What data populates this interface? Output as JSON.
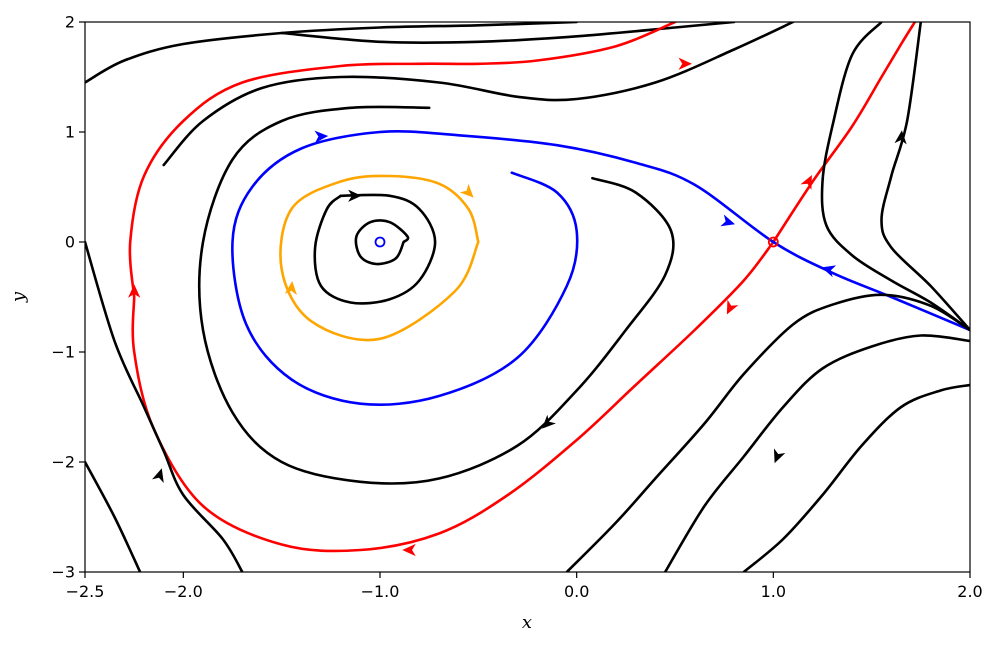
{
  "chart_data": {
    "type": "phase-portrait",
    "title": "",
    "xlabel": "x",
    "ylabel": "y",
    "xlim": [
      -2.5,
      2.0
    ],
    "ylim": [
      -3,
      2
    ],
    "x_ticks": [
      -2.5,
      -2.0,
      -1.0,
      0.0,
      1.0,
      2.0
    ],
    "x_tick_labels": [
      "−2.5",
      "−2.0",
      "−1.0",
      "0.0",
      "1.0",
      "2.0"
    ],
    "y_ticks": [
      -3,
      -2,
      -1,
      0,
      1,
      2
    ],
    "y_tick_labels": [
      "−3",
      "−2",
      "−1",
      "0",
      "1",
      "2"
    ],
    "grid": false,
    "colors": {
      "black": "#000000",
      "red": "#ff0000",
      "blue": "#0000ff",
      "orange": "#ffa500"
    },
    "fixed_points": [
      {
        "x": -1.0,
        "y": 0.0,
        "kind": "center",
        "color": "#0000ff"
      },
      {
        "x": 1.0,
        "y": 0.0,
        "kind": "saddle",
        "color": "#ff0000"
      }
    ],
    "trajectories": [
      {
        "color": "#000000",
        "points": [
          [
            -2.5,
            1.45
          ],
          [
            -2.3,
            1.65
          ],
          [
            -2.0,
            1.8
          ],
          [
            -1.5,
            1.9
          ],
          [
            -1.0,
            1.95
          ],
          [
            -0.5,
            1.97
          ],
          [
            0.0,
            2.0
          ]
        ]
      },
      {
        "color": "#000000",
        "points": [
          [
            -1.5,
            1.9
          ],
          [
            -1.0,
            1.82
          ],
          [
            -0.5,
            1.82
          ],
          [
            0.0,
            1.87
          ],
          [
            0.5,
            1.95
          ],
          [
            0.8,
            2.0
          ]
        ]
      },
      {
        "color": "#000000",
        "points": [
          [
            -2.1,
            0.7
          ],
          [
            -1.9,
            1.1
          ],
          [
            -1.6,
            1.4
          ],
          [
            -1.2,
            1.5
          ],
          [
            -0.7,
            1.45
          ],
          [
            -0.3,
            1.32
          ],
          [
            0.0,
            1.3
          ],
          [
            0.4,
            1.45
          ],
          [
            0.8,
            1.75
          ],
          [
            1.1,
            2.0
          ]
        ]
      },
      {
        "color": "#ff0000",
        "points": [
          [
            -2.25,
            -0.5
          ],
          [
            -2.27,
            0.0
          ],
          [
            -2.2,
            0.6
          ],
          [
            -2.0,
            1.1
          ],
          [
            -1.7,
            1.45
          ],
          [
            -1.2,
            1.6
          ],
          [
            -0.8,
            1.62
          ],
          [
            -0.5,
            1.62
          ],
          [
            -0.2,
            1.65
          ],
          [
            0.2,
            1.78
          ],
          [
            0.5,
            2.0
          ]
        ]
      },
      {
        "color": "#ff0000",
        "points": [
          [
            1.0,
            0.0
          ],
          [
            0.85,
            -0.35
          ],
          [
            0.6,
            -0.8
          ],
          [
            0.3,
            -1.3
          ],
          [
            0.0,
            -1.8
          ],
          [
            -0.35,
            -2.3
          ],
          [
            -0.7,
            -2.65
          ],
          [
            -1.1,
            -2.8
          ],
          [
            -1.5,
            -2.75
          ],
          [
            -1.9,
            -2.4
          ],
          [
            -2.15,
            -1.7
          ],
          [
            -2.25,
            -1.0
          ],
          [
            -2.25,
            -0.5
          ]
        ]
      },
      {
        "color": "#ff0000",
        "points": [
          [
            1.0,
            0.0
          ],
          [
            1.2,
            0.55
          ],
          [
            1.4,
            1.05
          ],
          [
            1.55,
            1.5
          ],
          [
            1.65,
            1.8
          ],
          [
            1.72,
            2.0
          ]
        ]
      },
      {
        "color": "#000000",
        "points": [
          [
            -2.5,
            -2.0
          ],
          [
            -2.35,
            -2.5
          ],
          [
            -2.22,
            -3.0
          ]
        ]
      },
      {
        "color": "#000000",
        "points": [
          [
            -2.5,
            0.0
          ],
          [
            -2.35,
            -0.9
          ],
          [
            -2.2,
            -1.5
          ],
          [
            -2.1,
            -1.9
          ],
          [
            -2.0,
            -2.3
          ],
          [
            -1.8,
            -2.7
          ],
          [
            -1.7,
            -3.0
          ]
        ]
      },
      {
        "color": "#000000",
        "points": [
          [
            0.08,
            0.58
          ],
          [
            0.3,
            0.45
          ],
          [
            0.48,
            0.1
          ],
          [
            0.45,
            -0.3
          ],
          [
            0.25,
            -0.8
          ],
          [
            0.0,
            -1.35
          ],
          [
            -0.3,
            -1.85
          ],
          [
            -0.7,
            -2.15
          ],
          [
            -1.1,
            -2.18
          ],
          [
            -1.5,
            -2.0
          ],
          [
            -1.75,
            -1.55
          ],
          [
            -1.9,
            -0.8
          ],
          [
            -1.9,
            0.0
          ],
          [
            -1.75,
            0.75
          ],
          [
            -1.5,
            1.1
          ],
          [
            -1.15,
            1.22
          ],
          [
            -0.75,
            1.22
          ]
        ]
      },
      {
        "color": "#0000ff",
        "points": [
          [
            -0.33,
            0.63
          ],
          [
            -0.1,
            0.45
          ],
          [
            0.0,
            0.1
          ],
          [
            -0.05,
            -0.4
          ],
          [
            -0.3,
            -1.05
          ],
          [
            -0.7,
            -1.4
          ],
          [
            -1.1,
            -1.47
          ],
          [
            -1.45,
            -1.25
          ],
          [
            -1.68,
            -0.75
          ],
          [
            -1.75,
            0.0
          ],
          [
            -1.65,
            0.5
          ],
          [
            -1.4,
            0.85
          ],
          [
            -1.0,
            1.0
          ],
          [
            -0.6,
            0.97
          ],
          [
            -0.1,
            0.88
          ],
          [
            0.3,
            0.72
          ],
          [
            0.6,
            0.52
          ],
          [
            1.0,
            0.0
          ],
          [
            1.3,
            -0.28
          ],
          [
            1.6,
            -0.5
          ],
          [
            2.0,
            -0.8
          ]
        ]
      },
      {
        "color": "#ffa500",
        "points": [
          [
            -0.5,
            0.0
          ],
          [
            -0.62,
            -0.45
          ],
          [
            -1.0,
            -0.88
          ],
          [
            -1.35,
            -0.72
          ],
          [
            -1.5,
            -0.25
          ],
          [
            -1.45,
            0.3
          ],
          [
            -1.2,
            0.55
          ],
          [
            -0.95,
            0.6
          ],
          [
            -0.7,
            0.53
          ],
          [
            -0.55,
            0.3
          ],
          [
            -0.5,
            0.0
          ]
        ]
      },
      {
        "color": "#000000",
        "points": [
          [
            -1.2,
            0.42
          ],
          [
            -0.95,
            0.42
          ],
          [
            -0.8,
            0.3
          ],
          [
            -0.72,
            0.0
          ],
          [
            -0.8,
            -0.35
          ],
          [
            -0.95,
            -0.52
          ],
          [
            -1.15,
            -0.55
          ],
          [
            -1.3,
            -0.4
          ],
          [
            -1.33,
            -0.05
          ],
          [
            -1.27,
            0.3
          ],
          [
            -1.2,
            0.42
          ]
        ]
      },
      {
        "color": "#000000",
        "points": [
          [
            -0.88,
            0.0
          ],
          [
            -0.92,
            -0.15
          ],
          [
            -1.02,
            -0.2
          ],
          [
            -1.1,
            -0.13
          ],
          [
            -1.12,
            0.05
          ],
          [
            -1.05,
            0.18
          ],
          [
            -0.95,
            0.18
          ],
          [
            -0.86,
            0.05
          ],
          [
            -0.88,
            0.0
          ]
        ]
      },
      {
        "color": "#000000",
        "points": [
          [
            1.55,
            2.0
          ],
          [
            1.4,
            1.7
          ],
          [
            1.3,
            1.05
          ],
          [
            1.25,
            0.55
          ],
          [
            1.27,
            0.15
          ],
          [
            1.4,
            -0.12
          ],
          [
            1.6,
            -0.35
          ],
          [
            1.8,
            -0.55
          ],
          [
            2.0,
            -0.8
          ]
        ]
      },
      {
        "color": "#000000",
        "points": [
          [
            1.75,
            2.0
          ],
          [
            1.68,
            1.1
          ],
          [
            1.6,
            0.6
          ],
          [
            1.55,
            0.2
          ],
          [
            1.6,
            -0.05
          ],
          [
            1.8,
            -0.4
          ],
          [
            2.0,
            -0.8
          ]
        ]
      },
      {
        "color": "#000000",
        "points": [
          [
            2.0,
            -0.8
          ],
          [
            1.8,
            -0.58
          ],
          [
            1.55,
            -0.48
          ],
          [
            1.3,
            -0.57
          ],
          [
            1.1,
            -0.75
          ],
          [
            0.85,
            -1.2
          ],
          [
            0.65,
            -1.65
          ],
          [
            0.4,
            -2.15
          ],
          [
            0.2,
            -2.55
          ],
          [
            -0.05,
            -3.0
          ]
        ]
      },
      {
        "color": "#000000",
        "points": [
          [
            2.0,
            -0.9
          ],
          [
            1.75,
            -0.85
          ],
          [
            1.5,
            -0.95
          ],
          [
            1.25,
            -1.15
          ],
          [
            1.05,
            -1.5
          ],
          [
            0.85,
            -1.95
          ],
          [
            0.65,
            -2.4
          ],
          [
            0.45,
            -3.0
          ]
        ]
      },
      {
        "color": "#000000",
        "points": [
          [
            2.0,
            -1.3
          ],
          [
            1.85,
            -1.35
          ],
          [
            1.65,
            -1.5
          ],
          [
            1.45,
            -1.85
          ],
          [
            1.25,
            -2.3
          ],
          [
            1.05,
            -2.7
          ],
          [
            0.85,
            -3.0
          ]
        ]
      }
    ],
    "arrows": [
      {
        "x": 0.55,
        "y": 1.62,
        "dx": 1,
        "dy": 0,
        "color": "#ff0000"
      },
      {
        "x": -1.3,
        "y": 0.96,
        "dx": 1,
        "dy": 0.05,
        "color": "#0000ff"
      },
      {
        "x": -1.13,
        "y": 0.42,
        "dx": 1,
        "dy": 0,
        "color": "#000000"
      },
      {
        "x": -0.55,
        "y": 0.45,
        "dx": 0.6,
        "dy": -0.6,
        "color": "#ffa500"
      },
      {
        "x": -1.45,
        "y": -0.42,
        "dx": 0.1,
        "dy": 1,
        "color": "#ffa500"
      },
      {
        "x": 0.77,
        "y": 0.18,
        "dx": 1,
        "dy": -0.3,
        "color": "#0000ff"
      },
      {
        "x": 1.28,
        "y": -0.25,
        "dx": -1,
        "dy": 0.3,
        "color": "#0000ff"
      },
      {
        "x": 1.18,
        "y": 0.55,
        "dx": 0.5,
        "dy": 1,
        "color": "#ff0000"
      },
      {
        "x": 0.78,
        "y": -0.6,
        "dx": -0.5,
        "dy": -1,
        "color": "#ff0000"
      },
      {
        "x": -2.25,
        "y": -0.45,
        "dx": 0,
        "dy": 1,
        "color": "#ff0000"
      },
      {
        "x": -0.85,
        "y": -2.8,
        "dx": -1,
        "dy": 0,
        "color": "#ff0000"
      },
      {
        "x": -2.12,
        "y": -2.12,
        "dx": 0.3,
        "dy": 1,
        "color": "#000000"
      },
      {
        "x": -0.15,
        "y": -1.65,
        "dx": -0.6,
        "dy": -0.6,
        "color": "#000000"
      },
      {
        "x": 1.02,
        "y": -1.95,
        "dx": -0.4,
        "dy": -1,
        "color": "#000000"
      },
      {
        "x": 1.65,
        "y": 0.95,
        "dx": 0.1,
        "dy": 1,
        "color": "#000000"
      }
    ]
  }
}
